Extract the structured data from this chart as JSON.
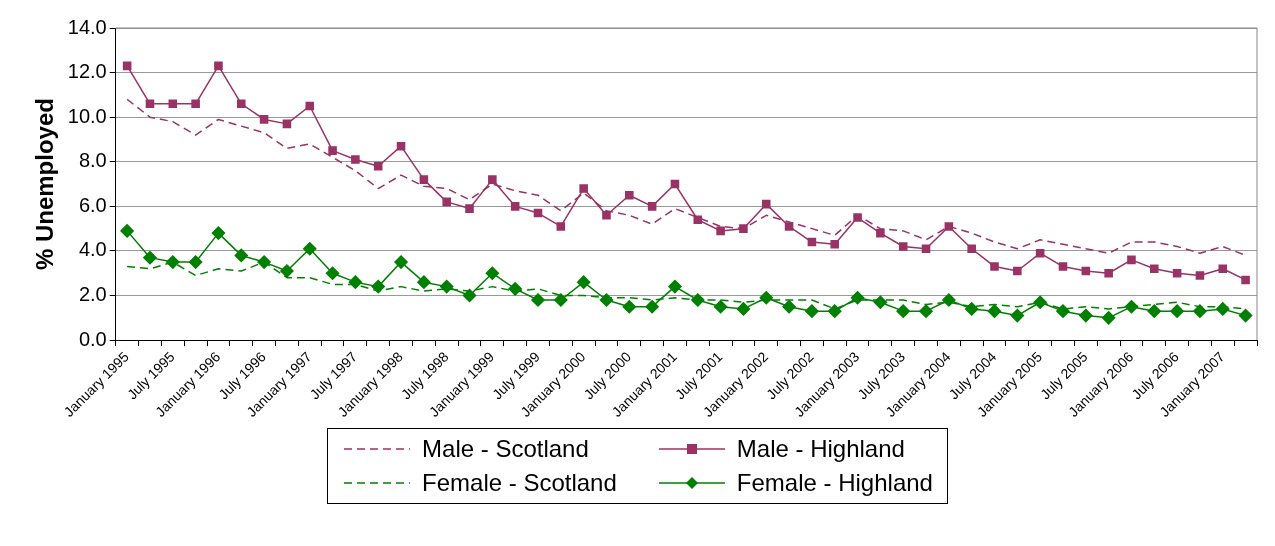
{
  "chart_data": {
    "type": "line",
    "ylabel": "% Unemployed",
    "categories": [
      "January 1995",
      null,
      "July 1995",
      null,
      "January 1996",
      null,
      "July 1996",
      null,
      "January 1997",
      null,
      "July 1997",
      null,
      "January 1998",
      null,
      "July 1998",
      null,
      "January 1999",
      null,
      "July 1999",
      null,
      "January 2000",
      null,
      "July 2000",
      null,
      "January 2001",
      null,
      "July 2001",
      null,
      "January 2002",
      null,
      "July 2002",
      null,
      "January 2003",
      null,
      "July 2003",
      null,
      "January 2004",
      null,
      "July 2004",
      null,
      "January 2005",
      null,
      "July 2005",
      null,
      "January 2006",
      null,
      "July 2006",
      null,
      "January 2007",
      null
    ],
    "series": [
      {
        "name": "Male - Scotland",
        "color": "#993366",
        "line_style": "dashed",
        "marker": "none",
        "values": [
          10.8,
          10.0,
          9.8,
          9.2,
          9.9,
          9.6,
          9.3,
          8.6,
          8.8,
          8.2,
          7.6,
          6.8,
          7.4,
          6.9,
          6.8,
          6.3,
          7.0,
          6.7,
          6.5,
          5.8,
          6.6,
          5.8,
          5.6,
          5.2,
          5.9,
          5.5,
          5.1,
          5.0,
          5.6,
          5.3,
          5.0,
          4.7,
          5.6,
          5.0,
          4.9,
          4.5,
          5.1,
          4.8,
          4.4,
          4.1,
          4.5,
          4.3,
          4.1,
          3.9,
          4.4,
          4.4,
          4.2,
          3.9,
          4.2,
          3.8
        ]
      },
      {
        "name": "Male - Highland",
        "color": "#993366",
        "line_style": "solid",
        "marker": "square",
        "values": [
          12.3,
          10.6,
          10.6,
          10.6,
          12.3,
          10.6,
          9.9,
          9.7,
          10.5,
          8.5,
          8.1,
          7.8,
          8.7,
          7.2,
          6.2,
          5.9,
          7.2,
          6.0,
          5.7,
          5.1,
          6.8,
          5.6,
          6.5,
          6.0,
          7.0,
          5.4,
          4.9,
          5.0,
          6.1,
          5.1,
          4.4,
          4.3,
          5.5,
          4.8,
          4.2,
          4.1,
          5.1,
          4.1,
          3.3,
          3.1,
          3.9,
          3.3,
          3.1,
          3.0,
          3.6,
          3.2,
          3.0,
          2.9,
          3.2,
          2.7
        ]
      },
      {
        "name": "Female - Scotland",
        "color": "#008000",
        "line_style": "dashed",
        "marker": "none",
        "values": [
          3.3,
          3.2,
          3.5,
          2.9,
          3.2,
          3.1,
          3.5,
          2.8,
          2.8,
          2.5,
          2.5,
          2.2,
          2.4,
          2.2,
          2.3,
          2.2,
          2.4,
          2.2,
          2.3,
          2.0,
          2.0,
          1.9,
          1.9,
          1.8,
          1.9,
          1.8,
          1.8,
          1.7,
          1.8,
          1.8,
          1.8,
          1.4,
          1.8,
          1.8,
          1.8,
          1.6,
          1.7,
          1.5,
          1.6,
          1.5,
          1.7,
          1.4,
          1.5,
          1.4,
          1.5,
          1.6,
          1.7,
          1.5,
          1.5,
          1.4
        ]
      },
      {
        "name": "Female - Highland",
        "color": "#008000",
        "line_style": "solid",
        "marker": "diamond",
        "values": [
          4.9,
          3.7,
          3.5,
          3.5,
          4.8,
          3.8,
          3.5,
          3.1,
          4.1,
          3.0,
          2.6,
          2.4,
          3.5,
          2.6,
          2.4,
          2.0,
          3.0,
          2.3,
          1.8,
          1.8,
          2.6,
          1.8,
          1.5,
          1.5,
          2.4,
          1.8,
          1.5,
          1.4,
          1.9,
          1.5,
          1.3,
          1.3,
          1.9,
          1.7,
          1.3,
          1.3,
          1.8,
          1.4,
          1.3,
          1.1,
          1.7,
          1.3,
          1.1,
          1.0,
          1.5,
          1.3,
          1.3,
          1.3,
          1.4,
          1.1
        ]
      }
    ],
    "ylim": [
      0,
      14
    ],
    "yticks": [
      {
        "value": 0,
        "label": "0.0"
      },
      {
        "value": 2,
        "label": "2.0"
      },
      {
        "value": 4,
        "label": "4.0"
      },
      {
        "value": 6,
        "label": "6.0"
      },
      {
        "value": 8,
        "label": "8.0"
      },
      {
        "value": 10,
        "label": "10.0"
      },
      {
        "value": 12,
        "label": "12.0"
      },
      {
        "value": 14,
        "label": "14.0"
      }
    ],
    "grid": "y",
    "legend": "bottom"
  }
}
